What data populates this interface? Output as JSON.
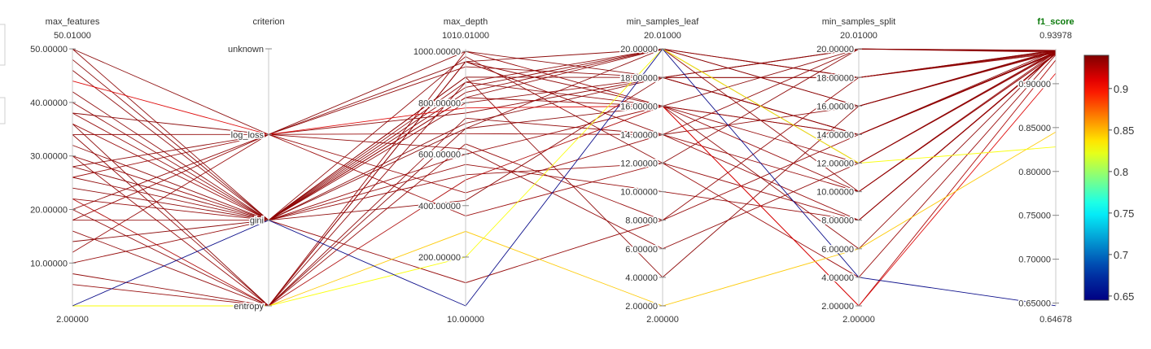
{
  "chart_data": {
    "type": "parallel_coordinates",
    "title": "",
    "color_variable": "f1_score",
    "colorscale": "Jet",
    "colorbar": {
      "range": [
        0.645,
        0.94
      ],
      "ticks": [
        0.65,
        0.7,
        0.75,
        0.8,
        0.85,
        0.9
      ],
      "tick_labels": [
        "0.65",
        "0.7",
        "0.75",
        "0.8",
        "0.85",
        "0.9"
      ]
    },
    "axes": [
      {
        "name": "max_features",
        "label": "max_features",
        "kind": "numeric",
        "range": [
          2,
          50.01
        ],
        "range_labels": [
          "2.00000",
          "50.01000"
        ],
        "ticks": [
          10,
          20,
          30,
          40,
          50
        ],
        "tick_labels": [
          "10.00000",
          "20.00000",
          "30.00000",
          "40.00000",
          "50.00000"
        ]
      },
      {
        "name": "criterion",
        "label": "criterion",
        "kind": "categorical",
        "categories": [
          "entropy",
          "gini",
          "log_loss",
          "unknown"
        ],
        "category_labels": [
          "entropy",
          "gini",
          "log_loss",
          "unknown"
        ]
      },
      {
        "name": "max_depth",
        "label": "max_depth",
        "kind": "numeric",
        "range": [
          10,
          1010.01
        ],
        "range_labels": [
          "10.00000",
          "1010.01000"
        ],
        "ticks": [
          200,
          400,
          600,
          800,
          1000
        ],
        "tick_labels": [
          "200.00000",
          "400.00000",
          "600.00000",
          "800.00000",
          "1000.00000"
        ]
      },
      {
        "name": "min_samples_leaf",
        "label": "min_samples_leaf",
        "kind": "numeric",
        "range": [
          2,
          20.01
        ],
        "range_labels": [
          "2.00000",
          "20.01000"
        ],
        "ticks": [
          2,
          4,
          6,
          8,
          10,
          12,
          14,
          16,
          18,
          20
        ],
        "tick_labels": [
          "2.00000",
          "4.00000",
          "6.00000",
          "8.00000",
          "10.00000",
          "12.00000",
          "14.00000",
          "16.00000",
          "18.00000",
          "20.00000"
        ]
      },
      {
        "name": "min_samples_split",
        "label": "min_samples_split",
        "kind": "numeric",
        "range": [
          2,
          20.01
        ],
        "range_labels": [
          "2.00000",
          "20.01000"
        ],
        "ticks": [
          2,
          4,
          6,
          8,
          10,
          12,
          14,
          16,
          18,
          20
        ],
        "tick_labels": [
          "2.00000",
          "4.00000",
          "6.00000",
          "8.00000",
          "10.00000",
          "12.00000",
          "14.00000",
          "16.00000",
          "18.00000",
          "20.00000"
        ]
      },
      {
        "name": "f1_score",
        "label": "f1_score",
        "kind": "numeric",
        "highlight": true,
        "range": [
          0.64678,
          0.93978
        ],
        "range_labels": [
          "0.64678",
          "0.93978"
        ],
        "ticks": [
          0.65,
          0.7,
          0.75,
          0.8,
          0.85,
          0.9
        ],
        "tick_labels": [
          "0.65000",
          "0.70000",
          "0.75000",
          "0.80000",
          "0.85000",
          "0.90000"
        ]
      }
    ],
    "trials": [
      [
        2,
        "gini",
        10,
        20,
        4,
        0.647
      ],
      [
        2,
        "entropy",
        300,
        2,
        6,
        0.845
      ],
      [
        2,
        "entropy",
        200,
        20,
        12,
        0.828
      ],
      [
        6,
        "entropy",
        1000,
        16,
        14,
        0.935
      ],
      [
        8,
        "entropy",
        960,
        14,
        16,
        0.936
      ],
      [
        14,
        "gini",
        900,
        18,
        20,
        0.938
      ],
      [
        18,
        "gini",
        840,
        20,
        18,
        0.936
      ],
      [
        18,
        "log_loss",
        680,
        14,
        10,
        0.934
      ],
      [
        20,
        "log_loss",
        620,
        6,
        12,
        0.936
      ],
      [
        22,
        "gini",
        560,
        10,
        8,
        0.935
      ],
      [
        22,
        "entropy",
        500,
        16,
        2,
        0.927
      ],
      [
        24,
        "gini",
        420,
        18,
        20,
        0.937
      ],
      [
        26,
        "log_loss",
        360,
        12,
        4,
        0.933
      ],
      [
        26,
        "gini",
        880,
        16,
        6,
        0.936
      ],
      [
        28,
        "gini",
        720,
        18,
        14,
        0.938
      ],
      [
        30,
        "entropy",
        640,
        8,
        18,
        0.935
      ],
      [
        32,
        "gini",
        820,
        20,
        16,
        0.937
      ],
      [
        34,
        "entropy",
        740,
        14,
        20,
        0.936
      ],
      [
        36,
        "gini",
        600,
        16,
        10,
        0.934
      ],
      [
        38,
        "gini",
        520,
        12,
        8,
        0.935
      ],
      [
        38,
        "log_loss",
        960,
        20,
        18,
        0.938
      ],
      [
        40,
        "gini",
        800,
        18,
        14,
        0.936
      ],
      [
        44,
        "log_loss",
        780,
        16,
        2,
        0.912
      ],
      [
        46,
        "gini",
        900,
        4,
        16,
        0.937
      ],
      [
        48,
        "gini",
        700,
        16,
        20,
        0.938
      ],
      [
        50,
        "log_loss",
        1000,
        18,
        18,
        0.938
      ],
      [
        50,
        "gini",
        860,
        20,
        12,
        0.937
      ],
      [
        12,
        "log_loss",
        450,
        14,
        8,
        0.934
      ],
      [
        16,
        "entropy",
        960,
        16,
        14,
        0.936
      ],
      [
        30,
        "gini",
        100,
        8,
        14,
        0.935
      ],
      [
        20,
        "entropy",
        880,
        20,
        10,
        0.936
      ],
      [
        28,
        "log_loss",
        760,
        18,
        18,
        0.937
      ],
      [
        36,
        "entropy",
        700,
        20,
        16,
        0.938
      ],
      [
        42,
        "gini",
        980,
        12,
        20,
        0.937
      ],
      [
        10,
        "gini",
        820,
        16,
        12,
        0.935
      ],
      [
        34,
        "log_loss",
        940,
        18,
        14,
        0.936
      ]
    ]
  }
}
